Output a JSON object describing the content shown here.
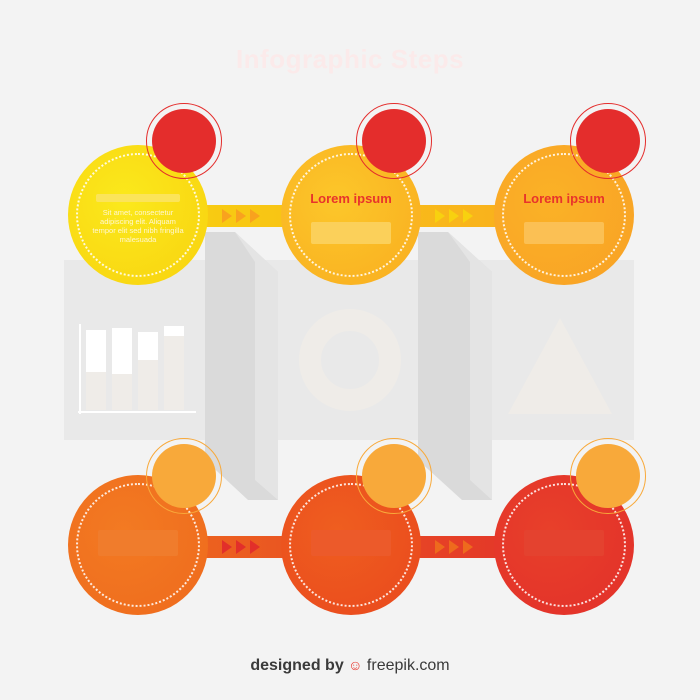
{
  "title": "Infographic Steps",
  "steps_top": [
    {
      "title": "",
      "body": "Sit amet, consectetur adipiscing elit. Aliquam tempor elit sed nibh fringilla malesuada"
    },
    {
      "title": "Lorem ipsum",
      "body": ""
    },
    {
      "title": "Lorem ipsum",
      "body": ""
    }
  ],
  "colors": {
    "yellow": "#f8d10f",
    "yellow_orange": "#f9ac1f",
    "orange": "#ee6a1d",
    "red_orange": "#e9481e",
    "red": "#e22f2a",
    "badge_red": "#e42d2c",
    "badge_orange": "#f8a93a"
  },
  "footer": {
    "prefix": "designed by",
    "icon": "freepik-icon",
    "brand": "freepik.com"
  }
}
